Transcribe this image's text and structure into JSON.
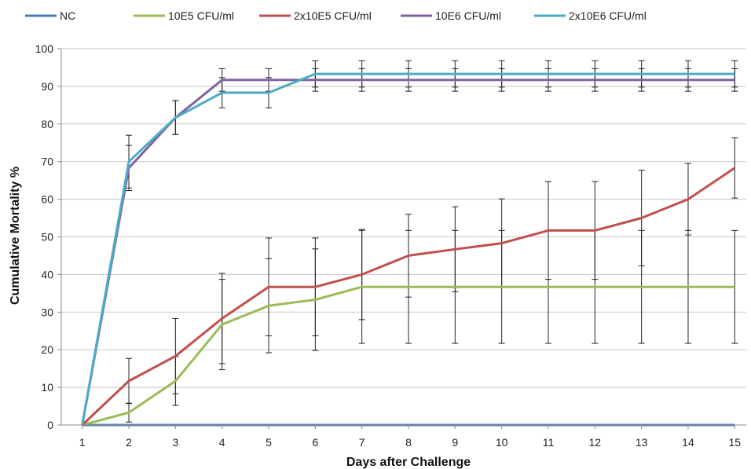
{
  "chart_data": {
    "type": "line",
    "title": "",
    "xlabel": "Days after Challenge",
    "ylabel": "Cumulative Mortality %",
    "x": [
      1,
      2,
      3,
      4,
      5,
      6,
      7,
      8,
      9,
      10,
      11,
      12,
      13,
      14,
      15
    ],
    "x_tick_labels": [
      "1",
      "2",
      "3",
      "4",
      "5",
      "6",
      "7",
      "8",
      "9",
      "10",
      "11",
      "12",
      "13",
      "14",
      "15"
    ],
    "xlim": [
      0.55,
      15.45
    ],
    "ylim": [
      0,
      100
    ],
    "y_ticks": [
      0,
      10,
      20,
      30,
      40,
      50,
      60,
      70,
      80,
      90,
      100
    ],
    "y_tick_labels": [
      "0",
      "10",
      "20",
      "30",
      "40",
      "50",
      "60",
      "70",
      "80",
      "90",
      "100"
    ],
    "grid": "horizontal",
    "legend_position": "top",
    "series": [
      {
        "name": "NC",
        "color": "#4a7ebb",
        "values": [
          0,
          0,
          0,
          0,
          0,
          0,
          0,
          0,
          0,
          0,
          0,
          0,
          0,
          0,
          0
        ],
        "error": [
          0,
          0,
          0,
          0,
          0,
          0,
          0,
          0,
          0,
          0,
          0,
          0,
          0,
          0,
          0
        ]
      },
      {
        "name": "10E5 CFU/ml",
        "color": "#9bbb59",
        "values": [
          0,
          3.3,
          11.7,
          26.7,
          31.7,
          33.3,
          36.7,
          36.7,
          36.7,
          36.7,
          36.7,
          36.7,
          36.7,
          36.7,
          36.7
        ],
        "error": [
          0,
          2.5,
          6.5,
          12,
          12.5,
          13.5,
          15,
          15,
          15,
          15,
          15,
          15,
          15,
          15,
          15
        ]
      },
      {
        "name": "2x10E5 CFU/ml",
        "color": "#c0504d",
        "values": [
          0,
          11.7,
          18.3,
          28.3,
          36.7,
          36.7,
          40,
          45,
          46.7,
          48.3,
          51.7,
          51.7,
          55,
          60,
          68.3
        ],
        "error": [
          0,
          6,
          10,
          12,
          13,
          13,
          12,
          11,
          11.3,
          11.8,
          13,
          13,
          12.7,
          9.5,
          8
        ]
      },
      {
        "name": "10E6 CFU/ml",
        "color": "#8064a2",
        "values": [
          0,
          68.3,
          81.7,
          91.7,
          91.7,
          91.7,
          91.7,
          91.7,
          91.7,
          91.7,
          91.7,
          91.7,
          91.7,
          91.7,
          91.7
        ],
        "error": [
          0,
          6,
          4.5,
          3,
          3,
          3,
          3,
          3,
          3,
          3,
          3,
          3,
          3,
          3,
          3
        ]
      },
      {
        "name": "2x10E6 CFU/ml",
        "color": "#4bacc6",
        "values": [
          0,
          70,
          81.7,
          88.3,
          88.3,
          93.3,
          93.3,
          93.3,
          93.3,
          93.3,
          93.3,
          93.3,
          93.3,
          93.3,
          93.3
        ],
        "error": [
          0,
          7,
          4.5,
          4,
          4,
          3.5,
          3.5,
          3.5,
          3.5,
          3.5,
          3.5,
          3.5,
          3.5,
          3.5,
          3.5
        ]
      }
    ]
  }
}
